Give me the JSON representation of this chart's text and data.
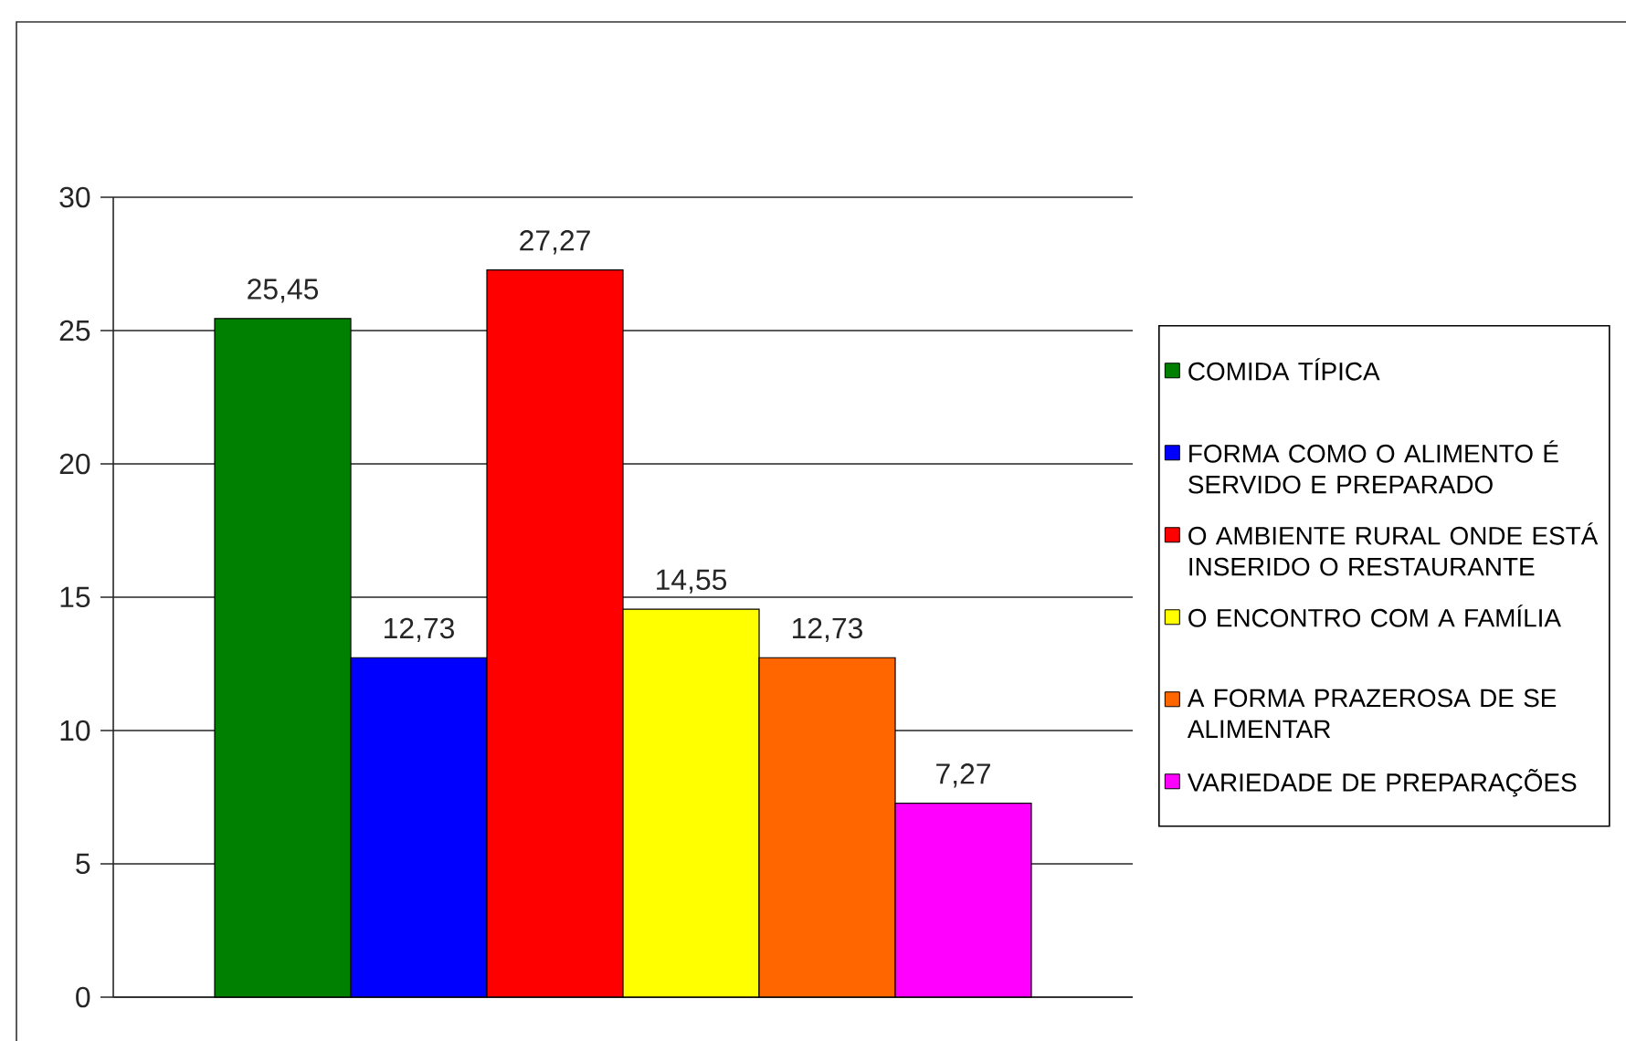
{
  "chart_data": {
    "type": "bar",
    "categories": [
      null
    ],
    "series": [
      {
        "name": "COMIDA TÍPICA",
        "color": "#008000",
        "values": [
          25.45
        ],
        "value_labels": [
          "25,45"
        ]
      },
      {
        "name": "FORMA COMO O ALIMENTO É SERVIDO E PREPARADO",
        "color": "#0000ff",
        "values": [
          12.73
        ],
        "value_labels": [
          "12,73"
        ]
      },
      {
        "name": "O AMBIENTE RURAL ONDE ESTÁ INSERIDO O RESTAURANTE",
        "color": "#ff0000",
        "values": [
          27.27
        ],
        "value_labels": [
          "27,27"
        ]
      },
      {
        "name": "O ENCONTRO COM A FAMÍLIA",
        "color": "#ffff00",
        "values": [
          14.55
        ],
        "value_labels": [
          "14,55"
        ]
      },
      {
        "name": "A FORMA PRAZEROSA DE SE ALIMENTAR",
        "color": "#ff6600",
        "values": [
          12.73
        ],
        "value_labels": [
          "12,73"
        ]
      },
      {
        "name": "VARIEDADE DE PREPARAÇÕES",
        "color": "#ff00ff",
        "values": [
          7.27
        ],
        "value_labels": [
          "7,27"
        ]
      }
    ],
    "ylim": [
      0,
      30
    ],
    "yticks": [
      0,
      5,
      10,
      15,
      20,
      25,
      30
    ],
    "grid": "y",
    "legend": "right"
  }
}
